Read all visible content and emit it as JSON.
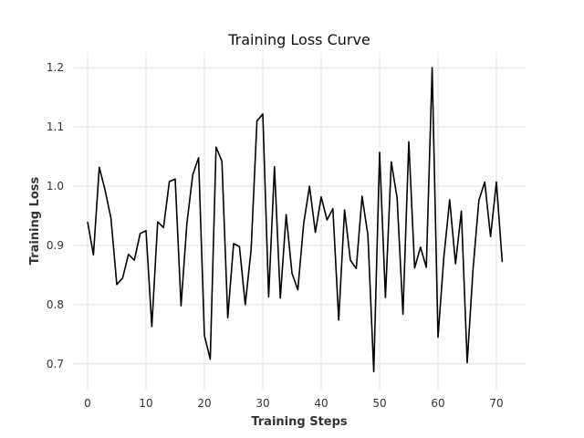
{
  "chart_data": {
    "type": "line",
    "title": "Training Loss Curve",
    "xlabel": "Training Steps",
    "ylabel": "Training Loss",
    "xlim": [
      -2.5,
      75
    ],
    "ylim": [
      0.655,
      1.225
    ],
    "xticks": [
      0,
      10,
      20,
      30,
      40,
      50,
      60,
      70
    ],
    "yticks": [
      0.7,
      0.8,
      0.9,
      1.0,
      1.1,
      1.2
    ],
    "xtick_labels": [
      "0",
      "10",
      "20",
      "30",
      "40",
      "50",
      "60",
      "70"
    ],
    "ytick_labels": [
      "0.7",
      "0.8",
      "0.9",
      "1.0",
      "1.1",
      "1.2"
    ],
    "grid": true,
    "legend": false,
    "line_color": "#000000",
    "series": [
      {
        "x": [
          0,
          1,
          2,
          3,
          4,
          5,
          6,
          7,
          8,
          9,
          10,
          11,
          12,
          13,
          14,
          15,
          16,
          17,
          18,
          19,
          20,
          21,
          22,
          23,
          24,
          25,
          26,
          27,
          28,
          29,
          30,
          31,
          32,
          33,
          34,
          35,
          36,
          37,
          38,
          39,
          40,
          41,
          42,
          43,
          44,
          45,
          46,
          47,
          48,
          49,
          50,
          51,
          52,
          53,
          54,
          55,
          56,
          57,
          58,
          59,
          60,
          61,
          62,
          63,
          64,
          65,
          66,
          67,
          68,
          69,
          70,
          71
        ],
        "values": [
          0.94,
          0.884,
          1.032,
          0.993,
          0.946,
          0.834,
          0.845,
          0.885,
          0.875,
          0.92,
          0.925,
          0.763,
          0.94,
          0.93,
          1.008,
          1.012,
          0.798,
          0.937,
          1.019,
          1.048,
          0.748,
          0.708,
          1.066,
          1.042,
          0.778,
          0.903,
          0.898,
          0.8,
          0.893,
          1.11,
          1.122,
          0.813,
          1.033,
          0.811,
          0.952,
          0.853,
          0.825,
          0.937,
          1.0,
          0.922,
          0.982,
          0.943,
          0.962,
          0.774,
          0.96,
          0.875,
          0.861,
          0.983,
          0.917,
          0.687,
          1.057,
          0.812,
          1.041,
          0.98,
          0.784,
          1.075,
          0.862,
          0.897,
          0.863,
          1.2,
          0.745,
          0.88,
          0.977,
          0.869,
          0.958,
          0.702,
          0.86,
          0.976,
          1.007,
          0.915,
          1.007,
          0.872
        ]
      }
    ]
  }
}
